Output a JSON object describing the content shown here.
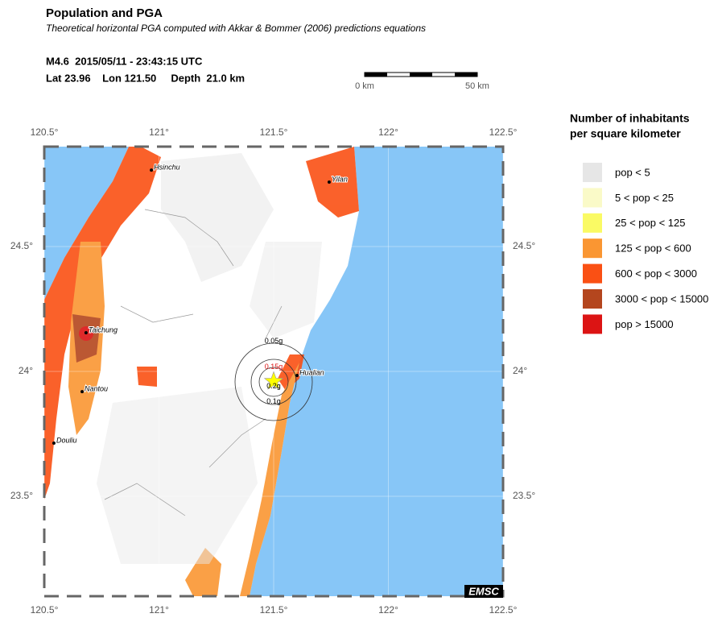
{
  "header": {
    "title": "Population and PGA",
    "subtitle": "Theoretical horizontal PGA computed with Akkar & Bommer (2006) predictions equations",
    "event": "M4.6  2015/05/11 - 23:43:15 UTC",
    "location": "Lat 23.96    Lon 121.50     Depth  21.0 km"
  },
  "scale_bar": {
    "labels": [
      "0 km",
      "50 km"
    ]
  },
  "map": {
    "xlim": [
      120.5,
      122.5
    ],
    "ylim": [
      23.1,
      24.9
    ],
    "xticks": [
      {
        "value": 120.5,
        "label": "120.5°"
      },
      {
        "value": 121,
        "label": "121°"
      },
      {
        "value": 121.5,
        "label": "121.5°"
      },
      {
        "value": 122,
        "label": "122°"
      },
      {
        "value": 122.5,
        "label": "122.5°"
      }
    ],
    "yticks": [
      {
        "value": 23.5,
        "label": "23.5°"
      },
      {
        "value": 24,
        "label": "24°"
      },
      {
        "value": 24.5,
        "label": "24.5°"
      }
    ],
    "epicenter": {
      "lon": 121.5,
      "lat": 23.96
    },
    "pga_labels": [
      "0.05g",
      "0.15g",
      "0.2g",
      "0.1g"
    ],
    "cities": [
      {
        "name": "Hsinchu",
        "lon": 120.967,
        "lat": 24.806
      },
      {
        "name": "Yilan",
        "lon": 121.742,
        "lat": 24.758
      },
      {
        "name": "Taichung",
        "lon": 120.682,
        "lat": 24.155
      },
      {
        "name": "Nantou",
        "lon": 120.665,
        "lat": 23.919
      },
      {
        "name": "Douliu",
        "lon": 120.542,
        "lat": 23.713
      },
      {
        "name": "Hualian",
        "lon": 121.602,
        "lat": 23.984
      }
    ],
    "logo": "EMSC"
  },
  "legend": {
    "title": [
      "Number of inhabitants",
      "per square kilometer"
    ],
    "items": [
      {
        "label": "pop < 5",
        "color": "#e6e6e6"
      },
      {
        "label": "5 < pop < 25",
        "color": "#fafac8"
      },
      {
        "label": "25 < pop < 125",
        "color": "#fafa64"
      },
      {
        "label": "125 < pop < 600",
        "color": "#fa9632"
      },
      {
        "label": "600 < pop < 3000",
        "color": "#fa5014"
      },
      {
        "label": "3000 < pop < 15000",
        "color": "#b4461e"
      },
      {
        "label": "pop > 15000",
        "color": "#dc1414"
      }
    ]
  }
}
